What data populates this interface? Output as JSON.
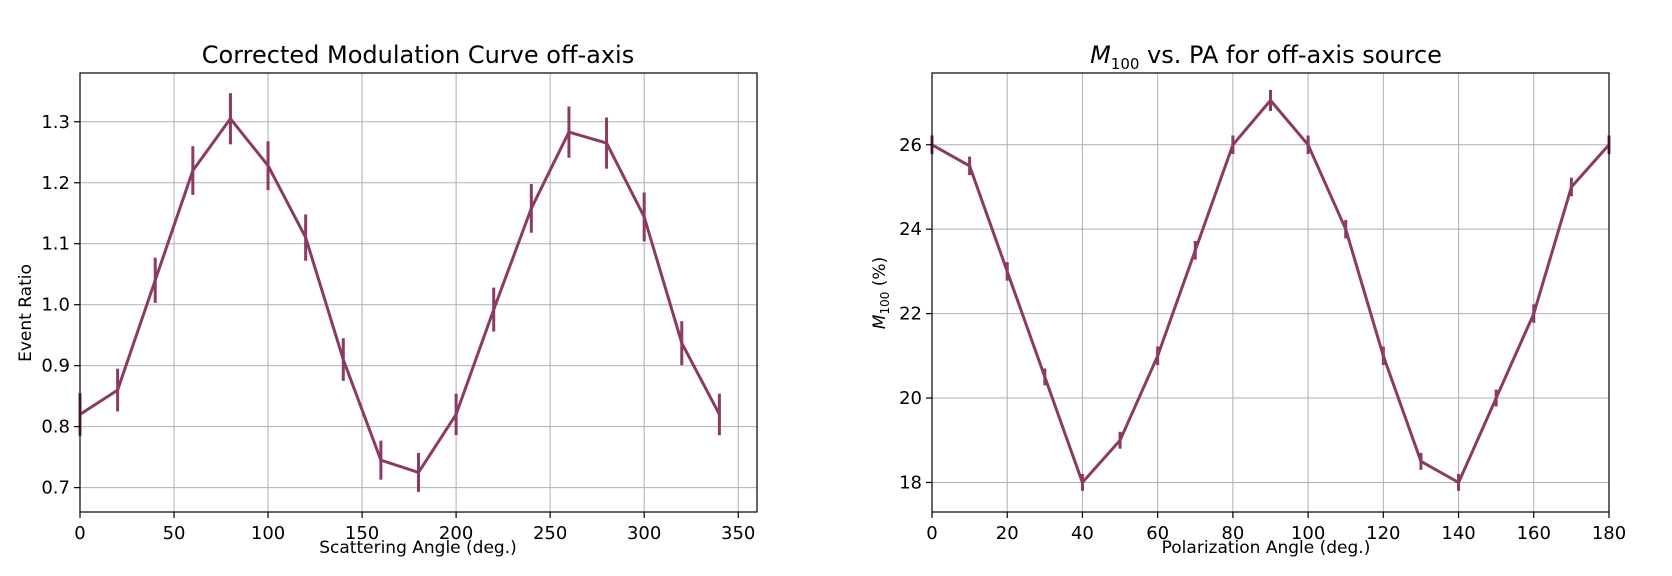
{
  "colors": {
    "series": "#8b3a62",
    "grid": "#b0b0b0",
    "axes": "#000000"
  },
  "chart_data": [
    {
      "type": "line",
      "error_bars": true,
      "title": "Corrected Modulation Curve off-axis",
      "xlabel": "Scattering Angle (deg.)",
      "ylabel": "Event Ratio",
      "xlim": [
        0,
        360
      ],
      "ylim": [
        0.66,
        1.38
      ],
      "xticks": [
        0,
        50,
        100,
        150,
        200,
        250,
        300,
        350
      ],
      "yticks": [
        0.7,
        0.8,
        0.9,
        1.0,
        1.1,
        1.2,
        1.3
      ],
      "ytick_labels": [
        "0.7",
        "0.8",
        "0.9",
        "1.0",
        "1.1",
        "1.2",
        "1.3"
      ],
      "grid": true,
      "x": [
        0,
        20,
        40,
        60,
        80,
        100,
        120,
        140,
        160,
        180,
        200,
        220,
        240,
        260,
        280,
        300,
        320,
        340
      ],
      "y": [
        0.82,
        0.86,
        1.04,
        1.22,
        1.305,
        1.228,
        1.11,
        0.91,
        0.745,
        0.725,
        0.82,
        0.992,
        1.158,
        1.283,
        1.265,
        1.144,
        0.937,
        0.82
      ],
      "yerr": [
        0.035,
        0.035,
        0.037,
        0.04,
        0.042,
        0.04,
        0.038,
        0.035,
        0.032,
        0.032,
        0.034,
        0.036,
        0.04,
        0.042,
        0.042,
        0.04,
        0.036,
        0.034
      ]
    },
    {
      "type": "line",
      "error_bars": true,
      "title_main": "M",
      "title_sub": "100",
      "title_rest": " vs. PA for off-axis source",
      "xlabel": "Polarization Angle (deg.)",
      "ylabel_main": "M",
      "ylabel_sub": "100",
      "ylabel_rest": " (%)",
      "xlim": [
        0,
        180
      ],
      "ylim": [
        17.3,
        27.7
      ],
      "xticks": [
        0,
        20,
        40,
        60,
        80,
        100,
        120,
        140,
        160,
        180
      ],
      "yticks": [
        18,
        20,
        22,
        24,
        26
      ],
      "grid": true,
      "x": [
        0,
        10,
        20,
        30,
        40,
        50,
        60,
        70,
        80,
        90,
        100,
        110,
        120,
        130,
        140,
        150,
        160,
        170,
        180
      ],
      "y": [
        26.0,
        25.5,
        23.0,
        20.5,
        18.0,
        19.0,
        21.0,
        23.5,
        26.0,
        27.05,
        26.0,
        24.0,
        21.0,
        18.5,
        18.0,
        20.0,
        22.0,
        25.0,
        26.0
      ],
      "yerr": [
        0.22,
        0.22,
        0.22,
        0.2,
        0.2,
        0.2,
        0.22,
        0.22,
        0.22,
        0.25,
        0.22,
        0.22,
        0.22,
        0.2,
        0.2,
        0.2,
        0.22,
        0.22,
        0.22
      ]
    }
  ]
}
